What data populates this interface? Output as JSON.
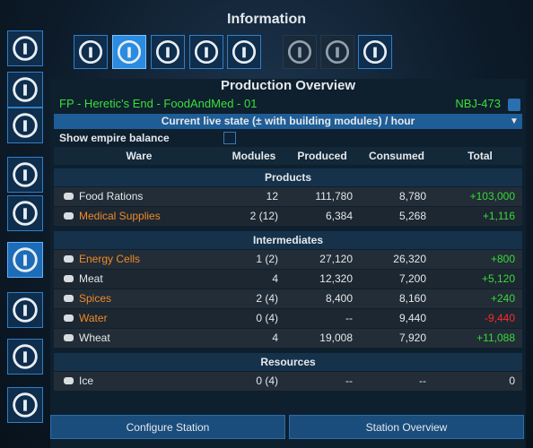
{
  "header": {
    "title": "Information"
  },
  "panel": {
    "title": "Production Overview",
    "station": "FP - Heretic's End - FoodAndMed - 01",
    "station_code": "NBJ-473",
    "mode": "Current live state (± with building modules) / hour",
    "checkbox_label": "Show empire balance"
  },
  "table": {
    "columns": [
      "Ware",
      "Modules",
      "Produced",
      "Consumed",
      "Total"
    ],
    "sections": [
      {
        "title": "Products",
        "rows": [
          {
            "ware": "Food Rations",
            "modules": "12",
            "produced": "111,780",
            "consumed": "8,780",
            "total": "+103,000",
            "color": "#e4e8ec"
          },
          {
            "ware": "Medical Supplies",
            "modules": "2 (12)",
            "produced": "6,384",
            "consumed": "5,268",
            "total": "+1,116",
            "color": "#f08a2a"
          }
        ]
      },
      {
        "title": "Intermediates",
        "rows": [
          {
            "ware": "Energy Cells",
            "modules": "1 (2)",
            "produced": "27,120",
            "consumed": "26,320",
            "total": "+800",
            "color": "#f08a2a"
          },
          {
            "ware": "Meat",
            "modules": "4",
            "produced": "12,320",
            "consumed": "7,200",
            "total": "+5,120",
            "color": "#e4e8ec"
          },
          {
            "ware": "Spices",
            "modules": "2 (4)",
            "produced": "8,400",
            "consumed": "8,160",
            "total": "+240",
            "color": "#f08a2a"
          },
          {
            "ware": "Water",
            "modules": "0 (4)",
            "produced": "--",
            "consumed": "9,440",
            "total": "-9,440",
            "color": "#f08a2a"
          },
          {
            "ware": "Wheat",
            "modules": "4",
            "produced": "19,008",
            "consumed": "7,920",
            "total": "+11,088",
            "color": "#e4e8ec"
          }
        ]
      },
      {
        "title": "Resources",
        "rows": [
          {
            "ware": "Ice",
            "modules": "0 (4)",
            "produced": "--",
            "consumed": "--",
            "total": "0",
            "color": "#e4e8ec"
          }
        ]
      }
    ]
  },
  "buttons": [
    "Configure Station",
    "Station Overview"
  ]
}
